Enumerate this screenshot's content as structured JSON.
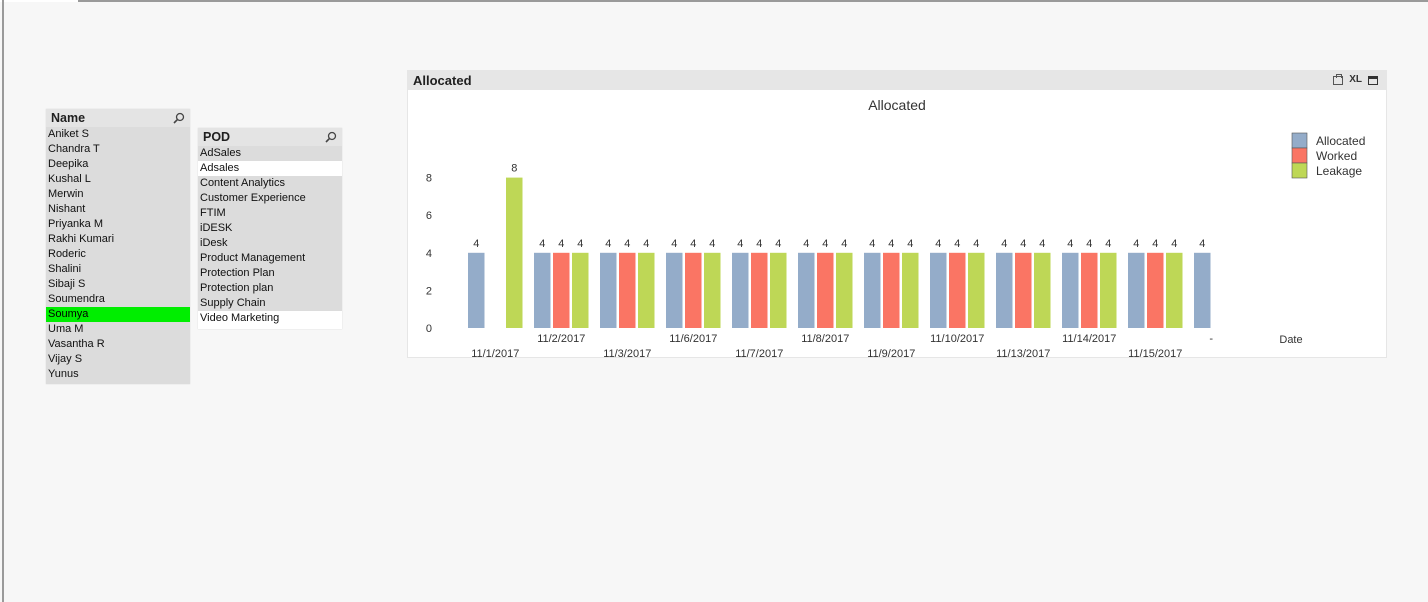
{
  "name_listbox": {
    "title": "Name",
    "items": [
      "Aniket S",
      "Chandra T",
      "Deepika",
      "Kushal L",
      "Merwin",
      "Nishant",
      "Priyanka M",
      "Rakhi Kumari",
      "Roderic",
      "Shalini",
      "Sibaji S",
      "Soumendra",
      "Soumya",
      "Uma M",
      "Vasantha R",
      "Vijay S",
      "Yunus"
    ],
    "selected": "Soumya"
  },
  "pod_listbox": {
    "title": "POD",
    "items": [
      {
        "label": "AdSales",
        "state": "excluded"
      },
      {
        "label": "Adsales",
        "state": "possible"
      },
      {
        "label": "Content Analytics",
        "state": "excluded"
      },
      {
        "label": "Customer Experience",
        "state": "excluded"
      },
      {
        "label": "FTIM",
        "state": "excluded"
      },
      {
        "label": "iDESK",
        "state": "excluded"
      },
      {
        "label": "iDesk",
        "state": "excluded"
      },
      {
        "label": "Product Management",
        "state": "excluded"
      },
      {
        "label": "Protection Plan",
        "state": "excluded"
      },
      {
        "label": "Protection plan",
        "state": "excluded"
      },
      {
        "label": "Supply Chain",
        "state": "excluded"
      },
      {
        "label": "Video Marketing",
        "state": "possible"
      }
    ]
  },
  "chart_object": {
    "caption": "Allocated",
    "caption_icons": [
      "print-icon",
      "xl-icon",
      "maximize-icon"
    ],
    "xl_label": "XL"
  },
  "chart_data": {
    "type": "bar",
    "title": "Allocated",
    "xlabel": "Date",
    "ylabel": "",
    "ylim": [
      0,
      9
    ],
    "yticks": [
      0,
      2,
      4,
      6,
      8
    ],
    "categories": [
      "11/1/2017",
      "11/2/2017",
      "11/3/2017",
      "11/6/2017",
      "11/7/2017",
      "11/8/2017",
      "11/9/2017",
      "11/10/2017",
      "11/13/2017",
      "11/14/2017",
      "11/15/2017",
      "-"
    ],
    "series": [
      {
        "name": "Allocated",
        "color": "#94acc9",
        "values": [
          4,
          4,
          4,
          4,
          4,
          4,
          4,
          4,
          4,
          4,
          4,
          4
        ]
      },
      {
        "name": "Worked",
        "color": "#fa7564",
        "values": [
          null,
          4,
          4,
          4,
          4,
          4,
          4,
          4,
          4,
          4,
          4,
          null
        ]
      },
      {
        "name": "Leakage",
        "color": "#bed756",
        "values": [
          8,
          4,
          4,
          4,
          4,
          4,
          4,
          4,
          4,
          4,
          4,
          null
        ]
      }
    ],
    "legend_position": "top-right",
    "data_labels": true,
    "grid": false
  }
}
